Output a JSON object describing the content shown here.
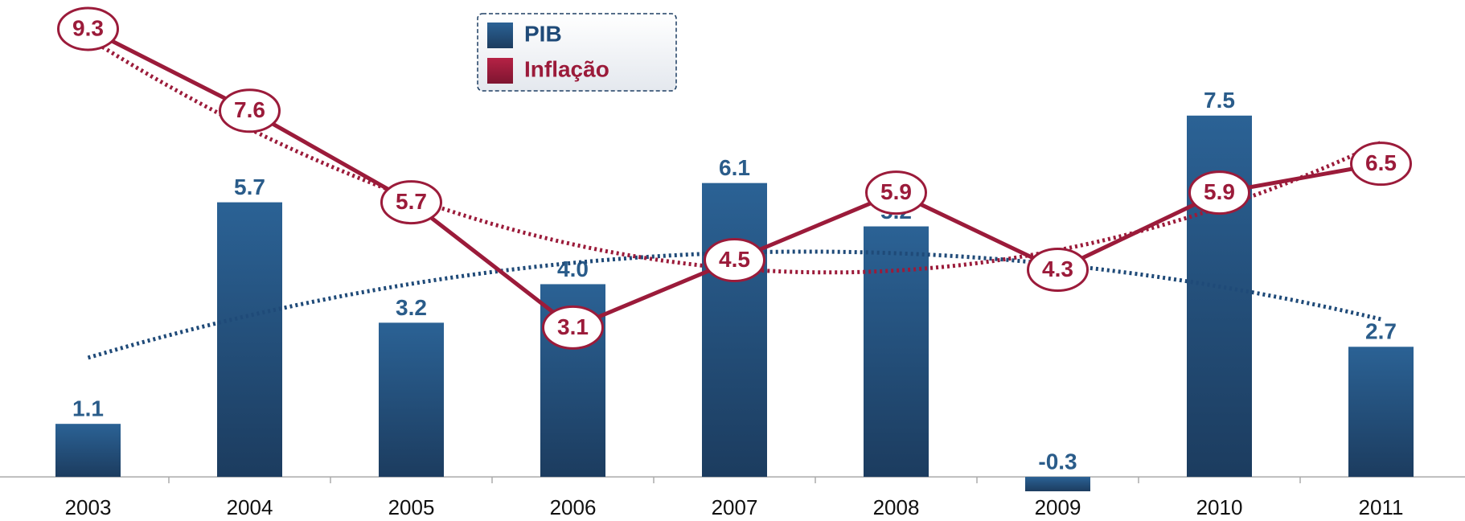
{
  "chart_data": {
    "type": "combo",
    "categories": [
      "2003",
      "2004",
      "2005",
      "2006",
      "2007",
      "2008",
      "2009",
      "2010",
      "2011"
    ],
    "series": [
      {
        "name": "PIB",
        "type": "bar",
        "color": "#1f4a78",
        "values": [
          1.1,
          5.7,
          3.2,
          4.0,
          6.1,
          5.2,
          -0.3,
          7.5,
          2.7
        ],
        "value_labels": [
          "1.1",
          "5.7",
          "3.2",
          "4.0",
          "6.1",
          "5.2",
          "-0.3",
          "7.5",
          "2.7"
        ]
      },
      {
        "name": "Inflação",
        "type": "line",
        "color": "#9b1b3a",
        "values": [
          9.3,
          7.6,
          5.7,
          3.1,
          4.5,
          5.9,
          4.3,
          5.9,
          6.5
        ],
        "value_labels": [
          "9.3",
          "7.6",
          "5.7",
          "3.1",
          "4.5",
          "5.9",
          "4.3",
          "5.9",
          "6.5"
        ]
      }
    ],
    "ylim": [
      -0.8,
      9.9
    ],
    "trendline": true,
    "legend": "top"
  }
}
